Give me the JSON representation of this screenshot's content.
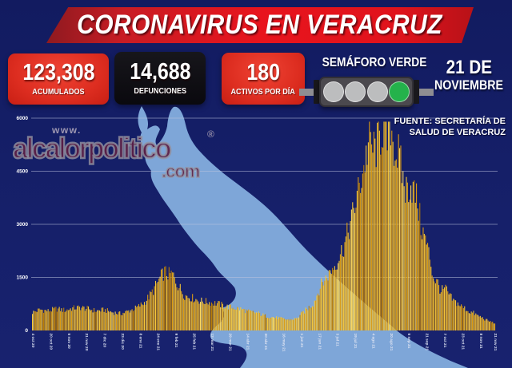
{
  "header": {
    "title": "CORONAVIRUS EN VERACRUZ"
  },
  "stats": [
    {
      "value": "123,308",
      "label": "ACUMULADOS"
    },
    {
      "value": "14,688",
      "label": "DEFUNCIONES"
    },
    {
      "value": "180",
      "label": "ACTIVOS POR DÍA"
    }
  ],
  "semaforo": {
    "label": "SEMÁFORO VERDE",
    "lights": [
      "gray",
      "gray",
      "gray",
      "green"
    ],
    "gray_color": "#bcbdbe",
    "green_color": "#24b24b"
  },
  "date": {
    "line1": "21 DE",
    "line2": "NOVIEMBRE"
  },
  "source": {
    "line1": "FUENTE: SECRETARÍA DE",
    "line2": "SALUD DE VERACRUZ"
  },
  "watermark": {
    "www": "www.",
    "name": "alcalorpolitico",
    "registered": "®",
    "tld": ".com"
  },
  "colors": {
    "background": "#151f68",
    "banner_red": "#e8141d",
    "card_red": "#dd2d20",
    "card_black": "#0a090e",
    "map_blue": "#7ea6d8",
    "gridline": "#bcc5e0",
    "text_white": "#ffffff"
  },
  "chart_data": {
    "type": "bar",
    "title": "",
    "xlabel": "",
    "ylabel": "",
    "ylim": [
      0,
      6000
    ],
    "yticks": [
      0,
      1500,
      3000,
      4500,
      6000
    ],
    "grid": true,
    "legend": false,
    "x_tick_labels": [
      "4 oct 20",
      "20 oct 20",
      "5 nov 20",
      "21 nov 20",
      "7 dic 20",
      "23 dic 20",
      "8 ene 21",
      "24 ene 21",
      "9 feb 21",
      "25 feb 21",
      "13 mar 21",
      "29 mar 21",
      "14 abr 21",
      "30 abr 21",
      "16 may 21",
      "1 jun 21",
      "17 jun 21",
      "3 jul 21",
      "19 jul 21",
      "4 ago 21",
      "20 ago 21",
      "5 sep 21",
      "21 sep 21",
      "7 oct 21",
      "23 oct 21",
      "8 nov 21",
      "21 nov 21"
    ],
    "x_tick_days": [
      0,
      16,
      32,
      48,
      64,
      80,
      96,
      112,
      128,
      144,
      160,
      176,
      192,
      208,
      224,
      240,
      256,
      272,
      288,
      304,
      320,
      336,
      352,
      368,
      384,
      400,
      413
    ],
    "bar_colors": {
      "light": "#f6c838",
      "dark": "#dd9c12",
      "deep": "#b87d06",
      "bright": "#ffd95c"
    },
    "series": [
      {
        "name": "casos activos por día",
        "anchors_day_value": [
          [
            0,
            520
          ],
          [
            7,
            600
          ],
          [
            14,
            560
          ],
          [
            21,
            620
          ],
          [
            29,
            580
          ],
          [
            36,
            640
          ],
          [
            43,
            660
          ],
          [
            50,
            620
          ],
          [
            57,
            560
          ],
          [
            64,
            590
          ],
          [
            72,
            520
          ],
          [
            79,
            480
          ],
          [
            86,
            560
          ],
          [
            93,
            650
          ],
          [
            100,
            800
          ],
          [
            107,
            1100
          ],
          [
            115,
            1550
          ],
          [
            118,
            1680
          ],
          [
            122,
            1600
          ],
          [
            125,
            1620
          ],
          [
            129,
            1350
          ],
          [
            136,
            1010
          ],
          [
            143,
            930
          ],
          [
            150,
            850
          ],
          [
            158,
            810
          ],
          [
            165,
            775
          ],
          [
            172,
            695
          ],
          [
            179,
            656
          ],
          [
            186,
            617
          ],
          [
            193,
            540
          ],
          [
            201,
            500
          ],
          [
            208,
            420
          ],
          [
            215,
            380
          ],
          [
            222,
            344
          ],
          [
            229,
            305
          ],
          [
            236,
            344
          ],
          [
            244,
            580
          ],
          [
            251,
            775
          ],
          [
            258,
            1320
          ],
          [
            265,
            1630
          ],
          [
            272,
            1980
          ],
          [
            279,
            2490
          ],
          [
            287,
            3430
          ],
          [
            294,
            4400
          ],
          [
            301,
            5460
          ],
          [
            304,
            5200
          ],
          [
            308,
            5300
          ],
          [
            314,
            5970
          ],
          [
            317,
            5400
          ],
          [
            320,
            5930
          ],
          [
            324,
            5100
          ],
          [
            327,
            5030
          ],
          [
            333,
            4020
          ],
          [
            338,
            4210
          ],
          [
            344,
            3700
          ],
          [
            347,
            3000
          ],
          [
            351,
            2600
          ],
          [
            355,
            2100
          ],
          [
            358,
            1520
          ],
          [
            362,
            1360
          ],
          [
            365,
            1130
          ],
          [
            369,
            1200
          ],
          [
            373,
            970
          ],
          [
            376,
            850
          ],
          [
            380,
            775
          ],
          [
            383,
            695
          ],
          [
            387,
            617
          ],
          [
            390,
            540
          ],
          [
            394,
            500
          ],
          [
            398,
            420
          ],
          [
            401,
            380
          ],
          [
            405,
            305
          ],
          [
            408,
            265
          ],
          [
            412,
            225
          ],
          [
            413,
            180
          ]
        ]
      }
    ],
    "peak_value_approx": 5900,
    "last_value": 180
  }
}
